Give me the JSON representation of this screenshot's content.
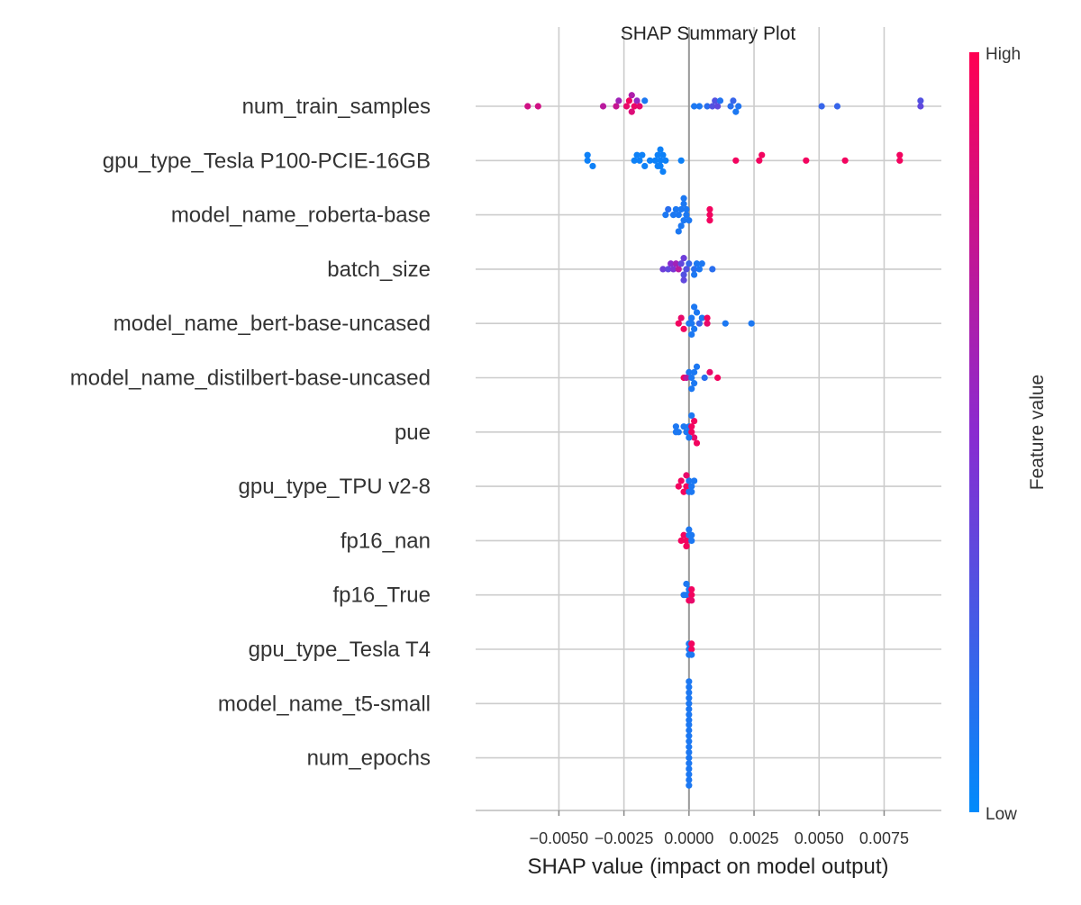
{
  "chart_data": {
    "type": "scatter",
    "title": "SHAP Summary Plot",
    "xlabel": "SHAP value (impact on model output)",
    "xlim": [
      -0.0082,
      0.0097
    ],
    "x_ticks": [
      -0.005,
      -0.0025,
      0.0,
      0.0025,
      0.005,
      0.0075
    ],
    "x_tick_labels": [
      "−0.0050",
      "−0.0025",
      "0.0000",
      "0.0025",
      "0.0050",
      "0.0075"
    ],
    "grid": true,
    "colorbar": {
      "label": "Feature value",
      "high_label": "High",
      "low_label": "Low",
      "low_color": "#008bfb",
      "mid_color": "#8a2bd0",
      "high_color": "#ff0052"
    },
    "features": [
      {
        "name": "num_train_samples",
        "points": [
          {
            "x": -0.0062,
            "v": 0.8
          },
          {
            "x": -0.0058,
            "v": 0.8
          },
          {
            "x": -0.0033,
            "v": 0.7
          },
          {
            "x": -0.0028,
            "v": 0.75
          },
          {
            "x": -0.0027,
            "v": 0.6
          },
          {
            "x": -0.0024,
            "v": 0.9
          },
          {
            "x": -0.0023,
            "v": 0.95
          },
          {
            "x": -0.0022,
            "v": 0.85
          },
          {
            "x": -0.0022,
            "v": 0.65
          },
          {
            "x": -0.0021,
            "v": 0.92
          },
          {
            "x": -0.002,
            "v": 0.55
          },
          {
            "x": -0.0019,
            "v": 0.88
          },
          {
            "x": -0.0017,
            "v": 0.1
          },
          {
            "x": 0.0002,
            "v": 0.1
          },
          {
            "x": 0.0004,
            "v": 0.1
          },
          {
            "x": 0.0007,
            "v": 0.15
          },
          {
            "x": 0.0009,
            "v": 0.3
          },
          {
            "x": 0.001,
            "v": 0.3
          },
          {
            "x": 0.0011,
            "v": 0.35
          },
          {
            "x": 0.0012,
            "v": 0.12
          },
          {
            "x": 0.0016,
            "v": 0.15
          },
          {
            "x": 0.0017,
            "v": 0.2
          },
          {
            "x": 0.0018,
            "v": 0.1
          },
          {
            "x": 0.0019,
            "v": 0.12
          },
          {
            "x": 0.0051,
            "v": 0.2
          },
          {
            "x": 0.0057,
            "v": 0.2
          },
          {
            "x": 0.0089,
            "v": 0.35
          },
          {
            "x": 0.0089,
            "v": 0.3
          }
        ]
      },
      {
        "name": "gpu_type_Tesla P100-PCIE-16GB",
        "points": [
          {
            "x": -0.0039,
            "v": 0.05
          },
          {
            "x": -0.0039,
            "v": 0.05
          },
          {
            "x": -0.0037,
            "v": 0.05
          },
          {
            "x": -0.0021,
            "v": 0.05
          },
          {
            "x": -0.002,
            "v": 0.05
          },
          {
            "x": -0.0019,
            "v": 0.05
          },
          {
            "x": -0.0018,
            "v": 0.05
          },
          {
            "x": -0.0017,
            "v": 0.05
          },
          {
            "x": -0.0015,
            "v": 0.05
          },
          {
            "x": -0.0013,
            "v": 0.05
          },
          {
            "x": -0.0012,
            "v": 0.05
          },
          {
            "x": -0.0011,
            "v": 0.05
          },
          {
            "x": -0.001,
            "v": 0.05
          },
          {
            "x": -0.0009,
            "v": 0.05
          },
          {
            "x": -0.0003,
            "v": 0.05
          },
          {
            "x": -0.0011,
            "v": 0.05
          },
          {
            "x": -0.0011,
            "v": 0.05
          },
          {
            "x": -0.0012,
            "v": 0.05
          },
          {
            "x": -0.001,
            "v": 0.05
          },
          {
            "x": 0.0018,
            "v": 0.95
          },
          {
            "x": 0.0027,
            "v": 0.95
          },
          {
            "x": 0.0028,
            "v": 0.95
          },
          {
            "x": 0.0045,
            "v": 0.95
          },
          {
            "x": 0.006,
            "v": 0.95
          },
          {
            "x": 0.0081,
            "v": 0.95
          },
          {
            "x": 0.0081,
            "v": 0.95
          }
        ]
      },
      {
        "name": "model_name_roberta-base",
        "points": [
          {
            "x": -0.0009,
            "v": 0.1
          },
          {
            "x": -0.0008,
            "v": 0.15
          },
          {
            "x": -0.0006,
            "v": 0.1
          },
          {
            "x": -0.0005,
            "v": 0.1
          },
          {
            "x": -0.0004,
            "v": 0.1
          },
          {
            "x": -0.0003,
            "v": 0.1
          },
          {
            "x": -0.0002,
            "v": 0.1
          },
          {
            "x": -0.0002,
            "v": 0.1
          },
          {
            "x": -0.0001,
            "v": 0.1
          },
          {
            "x": -0.0001,
            "v": 0.1
          },
          {
            "x": 0.0,
            "v": 0.1
          },
          {
            "x": -0.0003,
            "v": 0.1
          },
          {
            "x": -0.0002,
            "v": 0.1
          },
          {
            "x": -0.0004,
            "v": 0.1
          },
          {
            "x": 0.0008,
            "v": 0.95
          },
          {
            "x": 0.0008,
            "v": 0.95
          },
          {
            "x": 0.0008,
            "v": 0.95
          }
        ]
      },
      {
        "name": "batch_size",
        "points": [
          {
            "x": -0.001,
            "v": 0.4
          },
          {
            "x": -0.0008,
            "v": 0.35
          },
          {
            "x": -0.0007,
            "v": 0.5
          },
          {
            "x": -0.0006,
            "v": 0.45
          },
          {
            "x": -0.0005,
            "v": 0.6
          },
          {
            "x": -0.0004,
            "v": 0.7
          },
          {
            "x": -0.0003,
            "v": 0.35
          },
          {
            "x": -0.0002,
            "v": 0.3
          },
          {
            "x": -0.0002,
            "v": 0.4
          },
          {
            "x": -0.0002,
            "v": 0.35
          },
          {
            "x": -0.0001,
            "v": 0.3
          },
          {
            "x": 0.0,
            "v": 0.2
          },
          {
            "x": 0.0002,
            "v": 0.15
          },
          {
            "x": 0.0003,
            "v": 0.1
          },
          {
            "x": 0.0004,
            "v": 0.1
          },
          {
            "x": 0.0005,
            "v": 0.1
          },
          {
            "x": 0.0009,
            "v": 0.15
          },
          {
            "x": 0.0002,
            "v": 0.1
          }
        ]
      },
      {
        "name": "model_name_bert-base-uncased",
        "points": [
          {
            "x": -0.0004,
            "v": 0.95
          },
          {
            "x": -0.0003,
            "v": 0.9
          },
          {
            "x": -0.0002,
            "v": 0.95
          },
          {
            "x": 0.0,
            "v": 0.1
          },
          {
            "x": 0.0001,
            "v": 0.1
          },
          {
            "x": 0.0001,
            "v": 0.1
          },
          {
            "x": 0.0002,
            "v": 0.1
          },
          {
            "x": 0.0003,
            "v": 0.1
          },
          {
            "x": 0.0004,
            "v": 0.2
          },
          {
            "x": 0.0005,
            "v": 0.1
          },
          {
            "x": 0.0007,
            "v": 0.9
          },
          {
            "x": 0.0007,
            "v": 0.95
          },
          {
            "x": 0.0014,
            "v": 0.1
          },
          {
            "x": 0.0024,
            "v": 0.1
          },
          {
            "x": 0.0001,
            "v": 0.1
          },
          {
            "x": 0.0002,
            "v": 0.1
          }
        ]
      },
      {
        "name": "model_name_distilbert-base-uncased",
        "points": [
          {
            "x": -0.0002,
            "v": 0.95
          },
          {
            "x": -0.0001,
            "v": 0.7
          },
          {
            "x": 0.0,
            "v": 0.1
          },
          {
            "x": 0.0001,
            "v": 0.1
          },
          {
            "x": 0.0002,
            "v": 0.1
          },
          {
            "x": 0.0002,
            "v": 0.1
          },
          {
            "x": 0.0003,
            "v": 0.1
          },
          {
            "x": 0.0006,
            "v": 0.15
          },
          {
            "x": 0.0008,
            "v": 0.9
          },
          {
            "x": 0.0011,
            "v": 0.95
          },
          {
            "x": 0.0001,
            "v": 0.1
          }
        ]
      },
      {
        "name": "pue",
        "points": [
          {
            "x": -0.0005,
            "v": 0.1
          },
          {
            "x": -0.0005,
            "v": 0.1
          },
          {
            "x": -0.0004,
            "v": 0.1
          },
          {
            "x": -0.0002,
            "v": 0.1
          },
          {
            "x": -0.0001,
            "v": 0.1
          },
          {
            "x": 0.0,
            "v": 0.1
          },
          {
            "x": 0.0001,
            "v": 0.95
          },
          {
            "x": 0.0001,
            "v": 0.95
          },
          {
            "x": 0.0002,
            "v": 0.9
          },
          {
            "x": 0.0002,
            "v": 0.95
          },
          {
            "x": 0.0003,
            "v": 0.95
          },
          {
            "x": 0.0,
            "v": 0.1
          },
          {
            "x": 0.0001,
            "v": 0.1
          }
        ]
      },
      {
        "name": "gpu_type_TPU v2-8",
        "points": [
          {
            "x": -0.0004,
            "v": 0.95
          },
          {
            "x": -0.0003,
            "v": 0.95
          },
          {
            "x": -0.0002,
            "v": 0.95
          },
          {
            "x": -0.0001,
            "v": 0.95
          },
          {
            "x": 0.0,
            "v": 0.1
          },
          {
            "x": 0.0001,
            "v": 0.1
          },
          {
            "x": 0.0002,
            "v": 0.1
          },
          {
            "x": 0.0,
            "v": 0.1
          },
          {
            "x": -0.0001,
            "v": 0.9
          },
          {
            "x": 0.0001,
            "v": 0.1
          }
        ]
      },
      {
        "name": "fp16_nan",
        "points": [
          {
            "x": -0.0003,
            "v": 0.95
          },
          {
            "x": -0.0002,
            "v": 0.95
          },
          {
            "x": -0.0001,
            "v": 0.95
          },
          {
            "x": 0.0,
            "v": 0.1
          },
          {
            "x": 0.0001,
            "v": 0.1
          },
          {
            "x": -0.0001,
            "v": 0.95
          },
          {
            "x": 0.0,
            "v": 0.1
          },
          {
            "x": 0.0001,
            "v": 0.1
          }
        ]
      },
      {
        "name": "fp16_True",
        "points": [
          {
            "x": -0.0002,
            "v": 0.1
          },
          {
            "x": -0.0001,
            "v": 0.1
          },
          {
            "x": 0.0,
            "v": 0.1
          },
          {
            "x": 0.0001,
            "v": 0.95
          },
          {
            "x": 0.0001,
            "v": 0.95
          },
          {
            "x": 0.0,
            "v": 0.95
          },
          {
            "x": 0.0001,
            "v": 0.9
          },
          {
            "x": -0.0001,
            "v": 0.1
          }
        ]
      },
      {
        "name": "gpu_type_Tesla T4",
        "points": [
          {
            "x": 0.0,
            "v": 0.1
          },
          {
            "x": 0.0,
            "v": 0.1
          },
          {
            "x": 0.0001,
            "v": 0.95
          },
          {
            "x": 0.0001,
            "v": 0.95
          },
          {
            "x": 0.0,
            "v": 0.1
          },
          {
            "x": 0.0001,
            "v": 0.1
          }
        ]
      },
      {
        "name": "model_name_t5-small",
        "points": [
          {
            "x": 0.0,
            "v": 0.1
          },
          {
            "x": 0.0,
            "v": 0.1
          },
          {
            "x": 0.0,
            "v": 0.1
          },
          {
            "x": 0.0,
            "v": 0.1
          },
          {
            "x": 0.0,
            "v": 0.1
          },
          {
            "x": 0.0,
            "v": 0.1
          },
          {
            "x": 0.0,
            "v": 0.1
          },
          {
            "x": 0.0,
            "v": 0.1
          }
        ]
      },
      {
        "name": "num_epochs",
        "points": [
          {
            "x": 0.0,
            "v": 0.1
          },
          {
            "x": 0.0,
            "v": 0.1
          },
          {
            "x": 0.0,
            "v": 0.1
          },
          {
            "x": 0.0,
            "v": 0.1
          },
          {
            "x": 0.0,
            "v": 0.1
          },
          {
            "x": 0.0,
            "v": 0.1
          },
          {
            "x": 0.0,
            "v": 0.1
          },
          {
            "x": 0.0,
            "v": 0.1
          },
          {
            "x": 0.0,
            "v": 0.1
          },
          {
            "x": 0.0,
            "v": 0.1
          },
          {
            "x": 0.0,
            "v": 0.1
          },
          {
            "x": 0.0,
            "v": 0.1
          }
        ]
      }
    ]
  }
}
